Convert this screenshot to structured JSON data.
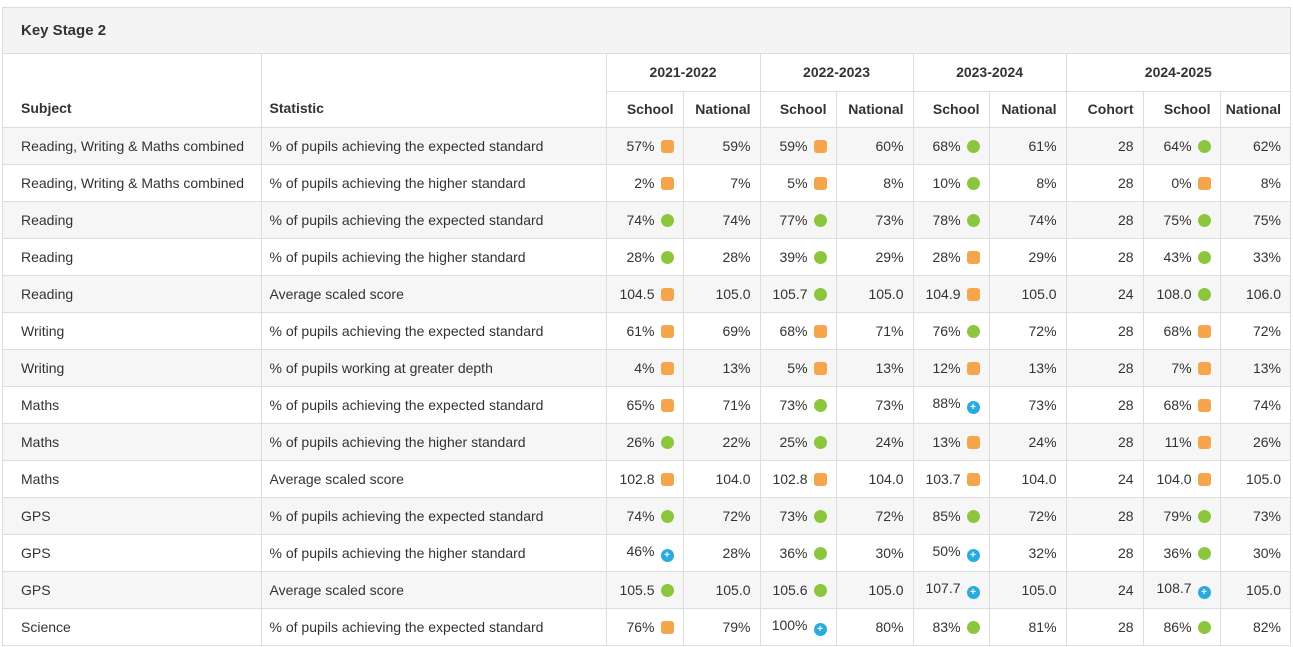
{
  "panel": {
    "title": "Key Stage 2"
  },
  "table": {
    "columns": {
      "subject": "Subject",
      "statistic": "Statistic",
      "year_groups": [
        {
          "label": "2021-2022",
          "sub": [
            "School",
            "National"
          ]
        },
        {
          "label": "2022-2023",
          "sub": [
            "School",
            "National"
          ]
        },
        {
          "label": "2023-2024",
          "sub": [
            "School",
            "National"
          ]
        },
        {
          "label": "2024-2025",
          "sub": [
            "Cohort",
            "School",
            "National"
          ]
        }
      ]
    },
    "rows": [
      {
        "subject": "Reading, Writing & Maths combined",
        "statistic": "% of pupils achieving the expected standard",
        "cells": [
          {
            "value": "57%",
            "icon": "square-orange"
          },
          {
            "value": "59%"
          },
          {
            "value": "59%",
            "icon": "square-orange"
          },
          {
            "value": "60%"
          },
          {
            "value": "68%",
            "icon": "circle-green"
          },
          {
            "value": "61%"
          },
          {
            "value": "28"
          },
          {
            "value": "64%",
            "icon": "circle-green"
          },
          {
            "value": "62%"
          }
        ]
      },
      {
        "subject": "Reading, Writing & Maths combined",
        "statistic": "% of pupils achieving the higher standard",
        "cells": [
          {
            "value": "2%",
            "icon": "square-orange"
          },
          {
            "value": "7%"
          },
          {
            "value": "5%",
            "icon": "square-orange"
          },
          {
            "value": "8%"
          },
          {
            "value": "10%",
            "icon": "circle-green"
          },
          {
            "value": "8%"
          },
          {
            "value": "28"
          },
          {
            "value": "0%",
            "icon": "square-orange"
          },
          {
            "value": "8%"
          }
        ]
      },
      {
        "subject": "Reading",
        "statistic": "% of pupils achieving the expected standard",
        "cells": [
          {
            "value": "74%",
            "icon": "circle-green"
          },
          {
            "value": "74%"
          },
          {
            "value": "77%",
            "icon": "circle-green"
          },
          {
            "value": "73%"
          },
          {
            "value": "78%",
            "icon": "circle-green"
          },
          {
            "value": "74%"
          },
          {
            "value": "28"
          },
          {
            "value": "75%",
            "icon": "circle-green"
          },
          {
            "value": "75%"
          }
        ]
      },
      {
        "subject": "Reading",
        "statistic": "% of pupils achieving the higher standard",
        "cells": [
          {
            "value": "28%",
            "icon": "circle-green"
          },
          {
            "value": "28%"
          },
          {
            "value": "39%",
            "icon": "circle-green"
          },
          {
            "value": "29%"
          },
          {
            "value": "28%",
            "icon": "square-orange"
          },
          {
            "value": "29%"
          },
          {
            "value": "28"
          },
          {
            "value": "43%",
            "icon": "circle-green"
          },
          {
            "value": "33%"
          }
        ]
      },
      {
        "subject": "Reading",
        "statistic": "Average scaled score",
        "cells": [
          {
            "value": "104.5",
            "icon": "square-orange"
          },
          {
            "value": "105.0"
          },
          {
            "value": "105.7",
            "icon": "circle-green"
          },
          {
            "value": "105.0"
          },
          {
            "value": "104.9",
            "icon": "square-orange"
          },
          {
            "value": "105.0"
          },
          {
            "value": "24"
          },
          {
            "value": "108.0",
            "icon": "circle-green"
          },
          {
            "value": "106.0"
          }
        ]
      },
      {
        "subject": "Writing",
        "statistic": "% of pupils achieving the expected standard",
        "cells": [
          {
            "value": "61%",
            "icon": "square-orange"
          },
          {
            "value": "69%"
          },
          {
            "value": "68%",
            "icon": "square-orange"
          },
          {
            "value": "71%"
          },
          {
            "value": "76%",
            "icon": "circle-green"
          },
          {
            "value": "72%"
          },
          {
            "value": "28"
          },
          {
            "value": "68%",
            "icon": "square-orange"
          },
          {
            "value": "72%"
          }
        ]
      },
      {
        "subject": "Writing",
        "statistic": "% of pupils working at greater depth",
        "cells": [
          {
            "value": "4%",
            "icon": "square-orange"
          },
          {
            "value": "13%"
          },
          {
            "value": "5%",
            "icon": "square-orange"
          },
          {
            "value": "13%"
          },
          {
            "value": "12%",
            "icon": "square-orange"
          },
          {
            "value": "13%"
          },
          {
            "value": "28"
          },
          {
            "value": "7%",
            "icon": "square-orange"
          },
          {
            "value": "13%"
          }
        ]
      },
      {
        "subject": "Maths",
        "statistic": "% of pupils achieving the expected standard",
        "cells": [
          {
            "value": "65%",
            "icon": "square-orange"
          },
          {
            "value": "71%"
          },
          {
            "value": "73%",
            "icon": "circle-green"
          },
          {
            "value": "73%"
          },
          {
            "value": "88%",
            "icon": "circle-plus-blue"
          },
          {
            "value": "73%"
          },
          {
            "value": "28"
          },
          {
            "value": "68%",
            "icon": "square-orange"
          },
          {
            "value": "74%"
          }
        ]
      },
      {
        "subject": "Maths",
        "statistic": "% of pupils achieving the higher standard",
        "cells": [
          {
            "value": "26%",
            "icon": "circle-green"
          },
          {
            "value": "22%"
          },
          {
            "value": "25%",
            "icon": "circle-green"
          },
          {
            "value": "24%"
          },
          {
            "value": "13%",
            "icon": "square-orange"
          },
          {
            "value": "24%"
          },
          {
            "value": "28"
          },
          {
            "value": "11%",
            "icon": "square-orange"
          },
          {
            "value": "26%"
          }
        ]
      },
      {
        "subject": "Maths",
        "statistic": "Average scaled score",
        "cells": [
          {
            "value": "102.8",
            "icon": "square-orange"
          },
          {
            "value": "104.0"
          },
          {
            "value": "102.8",
            "icon": "square-orange"
          },
          {
            "value": "104.0"
          },
          {
            "value": "103.7",
            "icon": "square-orange"
          },
          {
            "value": "104.0"
          },
          {
            "value": "24"
          },
          {
            "value": "104.0",
            "icon": "square-orange"
          },
          {
            "value": "105.0"
          }
        ]
      },
      {
        "subject": "GPS",
        "statistic": "% of pupils achieving the expected standard",
        "cells": [
          {
            "value": "74%",
            "icon": "circle-green"
          },
          {
            "value": "72%"
          },
          {
            "value": "73%",
            "icon": "circle-green"
          },
          {
            "value": "72%"
          },
          {
            "value": "85%",
            "icon": "circle-green"
          },
          {
            "value": "72%"
          },
          {
            "value": "28"
          },
          {
            "value": "79%",
            "icon": "circle-green"
          },
          {
            "value": "73%"
          }
        ]
      },
      {
        "subject": "GPS",
        "statistic": "% of pupils achieving the higher standard",
        "cells": [
          {
            "value": "46%",
            "icon": "circle-plus-blue"
          },
          {
            "value": "28%"
          },
          {
            "value": "36%",
            "icon": "circle-green"
          },
          {
            "value": "30%"
          },
          {
            "value": "50%",
            "icon": "circle-plus-blue"
          },
          {
            "value": "32%"
          },
          {
            "value": "28"
          },
          {
            "value": "36%",
            "icon": "circle-green"
          },
          {
            "value": "30%"
          }
        ]
      },
      {
        "subject": "GPS",
        "statistic": "Average scaled score",
        "cells": [
          {
            "value": "105.5",
            "icon": "circle-green"
          },
          {
            "value": "105.0"
          },
          {
            "value": "105.6",
            "icon": "circle-green"
          },
          {
            "value": "105.0"
          },
          {
            "value": "107.7",
            "icon": "circle-plus-blue"
          },
          {
            "value": "105.0"
          },
          {
            "value": "24"
          },
          {
            "value": "108.7",
            "icon": "circle-plus-blue"
          },
          {
            "value": "105.0"
          }
        ]
      },
      {
        "subject": "Science",
        "statistic": "% of pupils achieving the expected standard",
        "cells": [
          {
            "value": "76%",
            "icon": "square-orange"
          },
          {
            "value": "79%"
          },
          {
            "value": "100%",
            "icon": "circle-plus-blue"
          },
          {
            "value": "80%"
          },
          {
            "value": "83%",
            "icon": "circle-green"
          },
          {
            "value": "81%"
          },
          {
            "value": "28"
          },
          {
            "value": "86%",
            "icon": "circle-green"
          },
          {
            "value": "82%"
          }
        ]
      }
    ]
  },
  "icons": {
    "square-orange": {
      "shape": "rounded-square",
      "color": "#f5a54c"
    },
    "circle-green": {
      "shape": "circle",
      "color": "#8cc63f"
    },
    "circle-plus-blue": {
      "shape": "circle",
      "color": "#29abe2",
      "glyph": "+",
      "glyph_color": "#ffffff"
    }
  },
  "colors": {
    "heading_bg": "#f4f4f5",
    "border": "#dddddd",
    "row_stripe": "#f6f6f7",
    "text": "#333333"
  }
}
